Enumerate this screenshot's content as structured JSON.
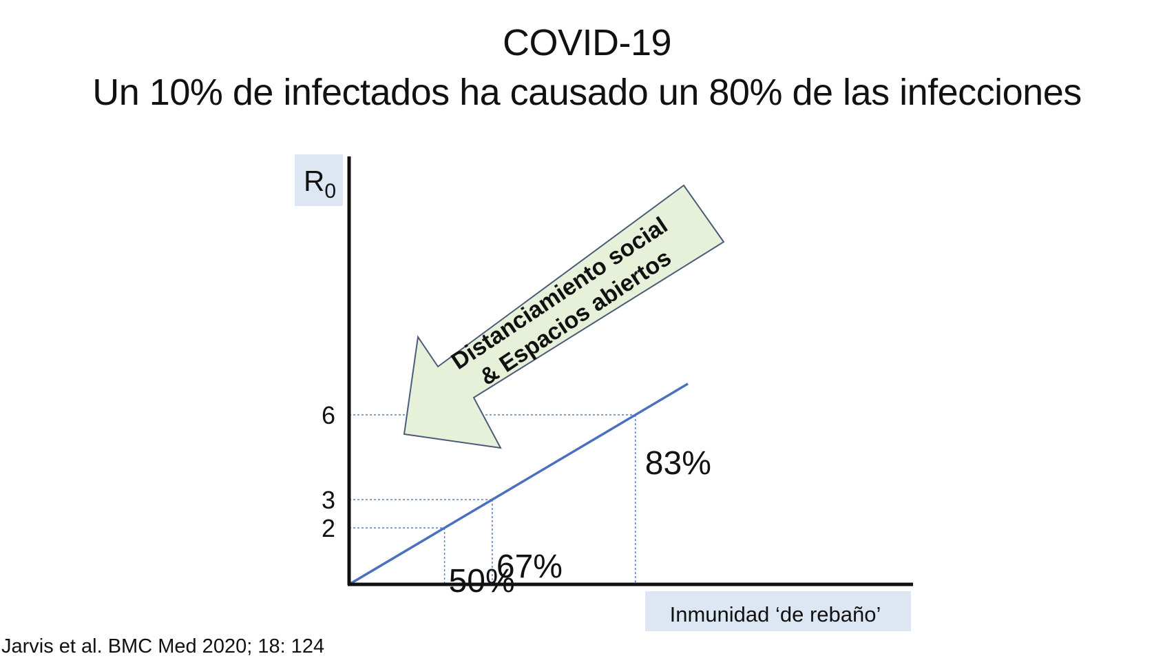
{
  "title_line1": "COVID-19",
  "title_line2": "Un 10% de infectados ha causado un 80% de las infecciones",
  "citation": "Jarvis et al. BMC Med 2020; 18: 124",
  "chart_data": {
    "type": "line",
    "ylabel": "R",
    "ylabel_subscript": "0",
    "xlabel": "Inmunidad ‘de rebaño’",
    "yticks": [
      6,
      3,
      2
    ],
    "series": [
      {
        "x": [
          0,
          1.0
        ],
        "values": [
          0,
          7.1
        ]
      }
    ],
    "markers": [
      {
        "r0": 2,
        "label": "50%"
      },
      {
        "r0": 3,
        "label": "67%"
      },
      {
        "r0": 6,
        "label": "83%"
      }
    ],
    "arrow_annotation": {
      "line1": "Distanciamiento social",
      "line2": "& Espacios abiertos"
    },
    "grid": false,
    "colors": {
      "line": "#4a70c0",
      "guide": "#5b7fc7",
      "label_bg": "#dde7f4",
      "arrow_fill": "#e7f1d9",
      "arrow_stroke": "#4a5b7a",
      "axis": "#111111"
    }
  }
}
